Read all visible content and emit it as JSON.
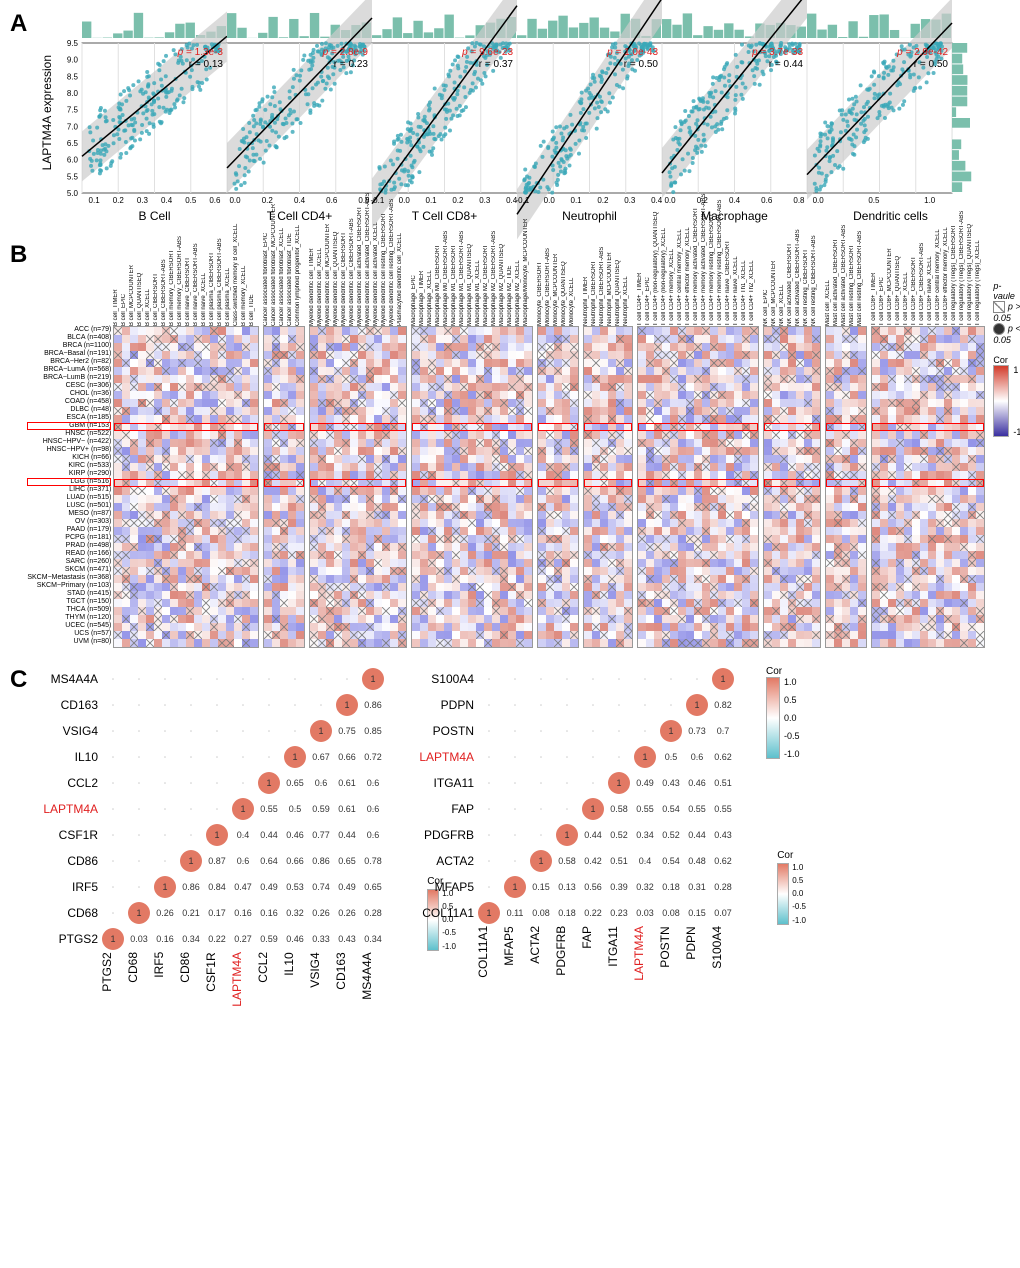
{
  "panelA": {
    "ylabel": "LAPTM4A expression",
    "point_color": "#3aa8b8",
    "hist_color": "#7bbfac",
    "line_color": "#000000",
    "ci_color": "#cccccc",
    "grid_color": "#e0e0e0",
    "ylim": [
      5.0,
      9.5
    ],
    "yticks": [
      "5.0",
      "5.5",
      "6.0",
      "6.5",
      "7.0",
      "7.5",
      "8.0",
      "8.5",
      "9.0",
      "9.5"
    ],
    "subplots": [
      {
        "xlabel": "B Cell",
        "p": "1.3e-3",
        "r": "0.13",
        "xticks": [
          "0.1",
          "0.2",
          "0.3",
          "0.4",
          "0.5",
          "0.6"
        ],
        "xlim": [
          0.05,
          0.65
        ],
        "slope": 6,
        "intercept": 5.8
      },
      {
        "xlabel": "T Cell CD4+",
        "p": "2.8e-9",
        "r": "0.23",
        "xticks": [
          "0.0",
          "0.2",
          "0.4",
          "0.6",
          "0.8"
        ],
        "xlim": [
          -0.05,
          0.85
        ],
        "slope": 5,
        "intercept": 6.0
      },
      {
        "xlabel": "T Cell CD8+",
        "p": "9.6e-23",
        "r": "0.37",
        "xticks": [
          "-0.1",
          "0.0",
          "0.1",
          "0.2",
          "0.3",
          "0.4"
        ],
        "xlim": [
          -0.12,
          0.42
        ],
        "slope": 11,
        "intercept": 6.0
      },
      {
        "xlabel": "Neutrophil",
        "p": "1.0e-43",
        "r": "0.50",
        "xticks": [
          "-0.1",
          "0.0",
          "0.1",
          "0.2",
          "0.3",
          "0.4"
        ],
        "xlim": [
          -0.12,
          0.42
        ],
        "slope": 12,
        "intercept": 5.8
      },
      {
        "xlabel": "Macrophage",
        "p": "3.7e-33",
        "r": "0.44",
        "xticks": [
          "0.0",
          "0.2",
          "0.4",
          "0.6",
          "0.8"
        ],
        "xlim": [
          -0.05,
          0.85
        ],
        "slope": 6,
        "intercept": 5.9
      },
      {
        "xlabel": "Dendritic cells",
        "p": "2.9e-42",
        "r": "0.50",
        "xticks": [
          "0.0",
          "0.5",
          "1.0"
        ],
        "xlim": [
          -0.1,
          1.2
        ],
        "slope": 3.5,
        "intercept": 5.9
      }
    ]
  },
  "panelB": {
    "ylabels": [
      "ACC (n=79)",
      "BLCA (n=408)",
      "BRCA (n=1100)",
      "BRCA−Basal (n=191)",
      "BRCA−Her2 (n=82)",
      "BRCA−LumA (n=568)",
      "BRCA−LumB (n=219)",
      "CESC (n=306)",
      "CHOL (n=36)",
      "COAD (n=458)",
      "DLBC (n=48)",
      "ESCA (n=185)",
      "GBM (n=153)",
      "HNSC (n=522)",
      "HNSC−HPV− (n=422)",
      "HNSC−HPV+ (n=98)",
      "KICH (n=66)",
      "KIRC (n=533)",
      "KIRP (n=290)",
      "LGG (n=516)",
      "LIHC (n=371)",
      "LUAD (n=515)",
      "LUSC (n=501)",
      "MESO (n=87)",
      "OV (n=303)",
      "PAAD (n=179)",
      "PCPG (n=181)",
      "PRAD (n=498)",
      "READ (n=166)",
      "SARC (n=260)",
      "SKCM (n=471)",
      "SKCM−Metastasis (n=368)",
      "SKCM−Primary (n=103)",
      "STAD (n=415)",
      "TGCT (n=150)",
      "THCA (n=509)",
      "THYM (n=120)",
      "UCEC (n=545)",
      "UCS (n=57)",
      "UVM (n=80)"
    ],
    "highlight_rows": [
      12,
      19
    ],
    "column_groups": [
      {
        "cols": [
          "B cell_TIMER",
          "B cell_EPIC",
          "B cell_MCPCOUNTER",
          "B cell_QUANTISEQ",
          "B cell_XCELL",
          "B cell_CIBERSORT",
          "B cell_CIBERSORT-ABS",
          "B cell memory_CIBERSORT",
          "B cell memory_CIBERSORT-ABS",
          "B cell naive_CIBERSORT",
          "B cell naive_CIBERSORT-ABS",
          "B cell naive_XCELL",
          "B cell plasma_CIBERSORT",
          "B cell plasma_CIBERSORT-ABS",
          "B cell plasma_XCELL",
          "Class-switched memory B cell_XCELL",
          "B cell memory_XCELL",
          "B cell_TIDE"
        ]
      },
      {
        "cols": [
          "Cancer associated fibroblast_EPIC",
          "Cancer associated fibroblast_MCPCOUNTER",
          "Cancer associated fibroblast_XCELL",
          "Cancer associated fibroblast_TIDE",
          "Common lymphoid progenitor_XCELL"
        ]
      },
      {
        "cols": [
          "Myeloid dendritic cell_TIMER",
          "Myeloid dendritic cell_XCELL",
          "Myeloid dendritic cell_MCPCOUNTER",
          "Myeloid dendritic cell_QUANTISEQ",
          "Myeloid dendritic cell_CIBERSORT",
          "Myeloid dendritic cell_CIBERSORT-ABS",
          "Myeloid dendritic cell activated_CIBERSORT",
          "Myeloid dendritic cell activated_CIBERSORT-ABS",
          "Myeloid dendritic cell activated_XCELL",
          "Myeloid dendritic cell resting_CIBERSORT",
          "Myeloid dendritic cell resting_CIBERSORT-ABS",
          "Plasmacytoid dendritic cell_XCELL"
        ]
      },
      {
        "cols": [
          "Macrophage_EPIC",
          "Macrophage_TIMER",
          "Macrophage_XCELL",
          "Macrophage M0_CIBERSORT",
          "Macrophage M0_CIBERSORT-ABS",
          "Macrophage M1_CIBERSORT",
          "Macrophage M1_CIBERSORT-ABS",
          "Macrophage M1_QUANTISEQ",
          "Macrophage M1_XCELL",
          "Macrophage M2_CIBERSORT",
          "Macrophage M2_CIBERSORT-ABS",
          "Macrophage M2_QUANTISEQ",
          "Macrophage M2_TIDE",
          "Macrophage M2_XCELL",
          "Macrophage/Monocyte_MCPCOUNTER"
        ]
      },
      {
        "cols": [
          "Monocyte_CIBERSORT",
          "Monocyte_CIBERSORT-ABS",
          "Monocyte_MCPCOUNTER",
          "Monocyte_QUANTISEQ",
          "Monocyte_XCELL"
        ]
      },
      {
        "cols": [
          "Neutrophil_TIMER",
          "Neutrophil_CIBERSORT",
          "Neutrophil_CIBERSORT-ABS",
          "Neutrophil_MCPCOUNTER",
          "Neutrophil_QUANTISEQ",
          "Neutrophil_XCELL"
        ]
      },
      {
        "cols": [
          "T cell CD4+_TIMER",
          "T cell CD4+_EPIC",
          "T cell CD4+ (non-regulatory)_QUANTISEQ",
          "T cell CD4+ (non-regulatory)_XCELL",
          "T cell CD4+ memory_XCELL",
          "T cell CD4+ central memory_XCELL",
          "T cell CD4+ effector memory_XCELL",
          "T cell CD4+ memory activated_CIBERSORT",
          "T cell CD4+ memory activated_CIBERSORT-ABS",
          "T cell CD4+ memory resting_CIBERSORT",
          "T cell CD4+ memory resting_CIBERSORT-ABS",
          "T cell CD4+ naive_CIBERSORT",
          "T cell CD4+ naive_XCELL",
          "T cell CD4+ Th1_XCELL",
          "T cell CD4+ Th2_XCELL"
        ]
      },
      {
        "cols": [
          "NK cell_EPIC",
          "NK cell_MCPCOUNTER",
          "NK cell_XCELL",
          "NK cell activated_CIBERSORT",
          "NK cell activated_CIBERSORT-ABS",
          "NK cell resting_CIBERSORT",
          "NK cell resting_CIBERSORT-ABS"
        ]
      },
      {
        "cols": [
          "Mast cell_XCELL",
          "Mast cell activated_CIBERSORT",
          "Mast cell activated_CIBERSORT-ABS",
          "Mast cell resting_CIBERSORT",
          "Mast cell resting_CIBERSORT-ABS"
        ]
      },
      {
        "cols": [
          "T cell CD8+_TIMER",
          "T cell CD8+_EPIC",
          "T cell CD8+_MCPCOUNTER",
          "T cell CD8+_QUANTISEQ",
          "T cell CD8+_XCELL",
          "T cell CD8+_CIBERSORT",
          "T cell CD8+_CIBERSORT-ABS",
          "T cell CD8+ naive_XCELL",
          "T cell CD8+ central memory_XCELL",
          "T cell CD8+ effector memory_XCELL",
          "T cell regulatory (Tregs)_CIBERSORT",
          "T cell regulatory (Tregs)_CIBERSORT-ABS",
          "T cell regulatory (Tregs)_QUANTISEQ",
          "T cell regulatory (Tregs)_XCELL"
        ]
      }
    ],
    "legend": {
      "pvalue_title": "p-vaule",
      "psig": "p < 0.05",
      "pnsig": "p > 0.05",
      "cor_title": "Cor",
      "cor_max": "1",
      "cor_min": "-1"
    },
    "color_pos": "#d97a6e",
    "color_neg": "#6a6adf",
    "color_mid": "#ffffff"
  },
  "panelC": {
    "cell_size": 26,
    "circle_color_high": "#e27964",
    "circle_color_low": "#5ec0cc",
    "left": {
      "genes": [
        "PTGS2",
        "CD68",
        "IRF5",
        "CD86",
        "CSF1R",
        "LAPTM4A",
        "CCL2",
        "IL10",
        "VSIG4",
        "CD163",
        "MS4A4A"
      ],
      "highlight": "LAPTM4A",
      "matrix": [
        [
          1,
          0.03,
          0.16,
          0.34,
          0.22,
          0.27,
          0.59,
          0.46,
          0.33,
          0.43,
          0.34
        ],
        [
          0.03,
          1,
          0.26,
          0.21,
          0.17,
          0.16,
          0.16,
          0.32,
          0.26,
          0.26,
          0.28
        ],
        [
          0.16,
          0.26,
          1,
          0.86,
          0.84,
          0.47,
          0.49,
          0.53,
          0.74,
          0.49,
          0.65
        ],
        [
          0.34,
          0.21,
          0.86,
          1,
          0.87,
          0.6,
          0.64,
          0.66,
          0.86,
          0.65,
          0.78
        ],
        [
          0.22,
          0.17,
          0.84,
          0.87,
          1,
          0.4,
          0.44,
          0.46,
          0.77,
          0.44,
          0.6
        ],
        [
          0.27,
          0.16,
          0.47,
          0.6,
          0.4,
          1,
          0.55,
          0.5,
          0.59,
          0.61,
          0.6
        ],
        [
          0.59,
          0.16,
          0.49,
          0.64,
          0.44,
          0.55,
          1,
          0.65,
          0.6,
          0.61,
          0.6
        ],
        [
          0.46,
          0.32,
          0.53,
          0.66,
          0.46,
          0.5,
          0.65,
          1,
          0.67,
          0.66,
          0.72
        ],
        [
          0.33,
          0.26,
          0.74,
          0.86,
          0.77,
          0.59,
          0.6,
          0.67,
          1,
          0.75,
          0.85
        ],
        [
          0.43,
          0.26,
          0.49,
          0.65,
          0.44,
          0.61,
          0.61,
          0.66,
          0.75,
          1,
          0.86
        ],
        [
          0.34,
          0.28,
          0.65,
          0.78,
          0.6,
          0.6,
          0.6,
          0.72,
          0.85,
          0.86,
          1
        ]
      ]
    },
    "right": {
      "genes": [
        "COL11A1",
        "MFAP5",
        "ACTA2",
        "PDGFRB",
        "FAP",
        "ITGA11",
        "LAPTM4A",
        "POSTN",
        "PDPN",
        "S100A4"
      ],
      "highlight": "LAPTM4A",
      "matrix": [
        [
          1,
          0.11,
          0.08,
          0.18,
          0.22,
          0.23,
          0.03,
          0.08,
          0.15,
          0.07
        ],
        [
          0.11,
          1,
          0.15,
          0.13,
          0.56,
          0.39,
          0.32,
          0.18,
          0.31,
          0.28
        ],
        [
          0.08,
          0.15,
          1,
          0.58,
          0.42,
          0.51,
          0.4,
          0.54,
          0.48,
          0.62
        ],
        [
          0.18,
          0.13,
          0.58,
          1,
          0.44,
          0.52,
          0.34,
          0.52,
          0.44,
          0.43
        ],
        [
          0.22,
          0.56,
          0.42,
          0.44,
          1,
          0.58,
          0.55,
          0.54,
          0.55,
          0.55
        ],
        [
          0.23,
          0.39,
          0.51,
          0.52,
          0.58,
          1,
          0.49,
          0.43,
          0.46,
          0.51
        ],
        [
          0.03,
          0.32,
          0.4,
          0.34,
          0.55,
          0.49,
          1,
          0.5,
          0.6,
          0.62
        ],
        [
          0.08,
          0.18,
          0.54,
          0.52,
          0.54,
          0.43,
          0.5,
          1,
          0.73,
          0.7
        ],
        [
          0.15,
          0.31,
          0.48,
          0.44,
          0.55,
          0.46,
          0.6,
          0.73,
          1,
          0.82
        ],
        [
          0.07,
          0.28,
          0.62,
          0.43,
          0.55,
          0.51,
          0.62,
          0.7,
          0.82,
          1
        ]
      ]
    },
    "legend": {
      "cor_title": "Cor",
      "labels": [
        "1.0",
        "0.5",
        "0.0",
        "-0.5",
        "-1.0"
      ]
    }
  }
}
